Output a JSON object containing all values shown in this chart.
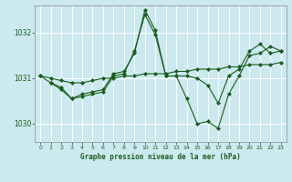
{
  "background_color": "#cce9f0",
  "grid_color": "#ffffff",
  "line_color": "#1a5c1a",
  "title": "Graphe pression niveau de la mer (hPa)",
  "xlim": [
    -0.5,
    23.5
  ],
  "ylim": [
    1029.6,
    1032.6
  ],
  "yticks": [
    1030,
    1031,
    1032
  ],
  "xticks": [
    0,
    1,
    2,
    3,
    4,
    5,
    6,
    7,
    8,
    9,
    10,
    11,
    12,
    13,
    14,
    15,
    16,
    17,
    18,
    19,
    20,
    21,
    22,
    23
  ],
  "series": [
    {
      "x": [
        0,
        1,
        2,
        3,
        4,
        5,
        6,
        7,
        8,
        9,
        10,
        11,
        12,
        13,
        14,
        15,
        16,
        17,
        18,
        19,
        20,
        21,
        22,
        23
      ],
      "y": [
        1031.05,
        1031.0,
        1030.95,
        1030.9,
        1030.9,
        1030.95,
        1031.0,
        1031.0,
        1031.05,
        1031.05,
        1031.1,
        1031.1,
        1031.1,
        1031.15,
        1031.15,
        1031.2,
        1031.2,
        1031.2,
        1031.25,
        1031.25,
        1031.3,
        1031.3,
        1031.3,
        1031.35
      ]
    },
    {
      "x": [
        1,
        2,
        3,
        4,
        5,
        6,
        7,
        8,
        9,
        10,
        11,
        12,
        13,
        14,
        15,
        16,
        17,
        18,
        19,
        20,
        21,
        22,
        23
      ],
      "y": [
        1030.9,
        1030.8,
        1030.55,
        1030.6,
        1030.65,
        1030.7,
        1031.05,
        1031.1,
        1031.6,
        1032.4,
        1031.95,
        1031.05,
        1031.05,
        1030.55,
        1030.0,
        1030.05,
        1029.9,
        1030.65,
        1031.05,
        1031.5,
        1031.55,
        1031.7,
        1031.6
      ]
    },
    {
      "x": [
        0,
        1,
        2,
        3,
        4,
        5,
        6,
        7,
        8,
        9,
        10,
        11,
        12,
        13,
        14,
        15,
        16,
        17,
        18,
        19,
        20,
        21,
        22,
        23
      ],
      "y": [
        1031.05,
        1030.9,
        1030.75,
        1030.55,
        1030.65,
        1030.7,
        1030.75,
        1031.1,
        1031.15,
        1031.55,
        1032.5,
        1032.05,
        1031.05,
        1031.05,
        1031.05,
        1031.0,
        1030.85,
        1030.45,
        1031.05,
        1031.2,
        1031.6,
        1031.75,
        1031.55,
        1031.6
      ]
    }
  ]
}
